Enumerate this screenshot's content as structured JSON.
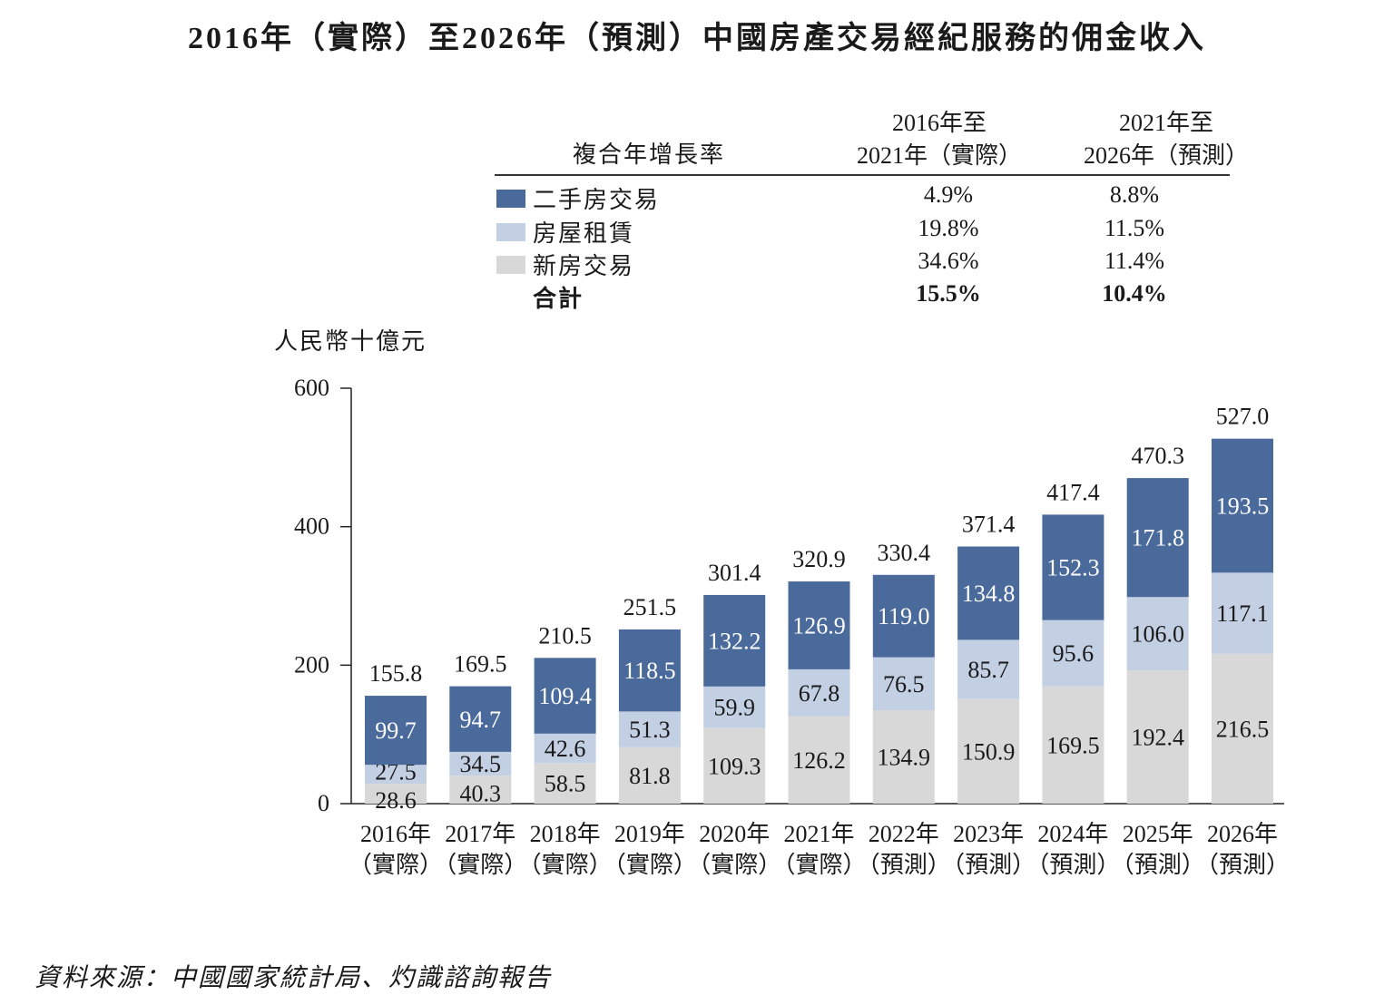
{
  "title": "2016年（實際）至2026年（預測）中國房產交易經紀服務的佣金收入",
  "cagr_table": {
    "header_label": "複合年增長率",
    "col1": [
      "2016年至",
      "2021年（實際）"
    ],
    "col2": [
      "2021年至",
      "2026年（預測）"
    ],
    "rows": [
      {
        "label": "二手房交易",
        "v1": "4.9%",
        "v2": "8.8%",
        "color": "#4a6a9c"
      },
      {
        "label": "房屋租賃",
        "v1": "19.8%",
        "v2": "11.5%",
        "color": "#c3cfe3"
      },
      {
        "label": "新房交易",
        "v1": "34.6%",
        "v2": "11.4%",
        "color": "#d8d8d8"
      }
    ],
    "total": {
      "label": "合計",
      "v1": "15.5%",
      "v2": "10.4%"
    }
  },
  "unit_label": "人民幣十億元",
  "chart_data": {
    "type": "bar",
    "stacked": true,
    "categories": [
      [
        "2016年",
        "（實際）"
      ],
      [
        "2017年",
        "（實際）"
      ],
      [
        "2018年",
        "（實際）"
      ],
      [
        "2019年",
        "（實際）"
      ],
      [
        "2020年",
        "（實際）"
      ],
      [
        "2021年",
        "（實際）"
      ],
      [
        "2022年",
        "（預測）"
      ],
      [
        "2023年",
        "（預測）"
      ],
      [
        "2024年",
        "（預測）"
      ],
      [
        "2025年",
        "（預測）"
      ],
      [
        "2026年",
        "（預測）"
      ]
    ],
    "series": [
      {
        "name": "新房交易",
        "color": "#d8d8d8",
        "label_color": "#1a1a1a",
        "values": [
          28.6,
          40.3,
          58.5,
          81.8,
          109.3,
          126.2,
          134.9,
          150.9,
          169.5,
          192.4,
          216.5
        ]
      },
      {
        "name": "房屋租賃",
        "color": "#c3cfe3",
        "label_color": "#1a1a1a",
        "values": [
          27.5,
          34.5,
          42.6,
          51.3,
          59.9,
          67.8,
          76.5,
          85.7,
          95.6,
          106.0,
          117.1
        ]
      },
      {
        "name": "二手房交易",
        "color": "#4a6a9c",
        "label_color": "#ffffff",
        "values": [
          99.7,
          94.7,
          109.4,
          118.5,
          132.2,
          126.9,
          119.0,
          134.8,
          152.3,
          171.8,
          193.5
        ]
      }
    ],
    "totals": [
      155.8,
      169.5,
      210.5,
      251.5,
      301.4,
      320.9,
      330.4,
      371.4,
      417.4,
      470.3,
      527.0
    ],
    "yticks": [
      0,
      200,
      400,
      600
    ],
    "ylim": [
      0,
      600
    ],
    "ylabel": "人民幣十億元",
    "xlabel": "",
    "grid": false
  },
  "source": "資料來源：中國國家統計局、灼識諮詢報告"
}
